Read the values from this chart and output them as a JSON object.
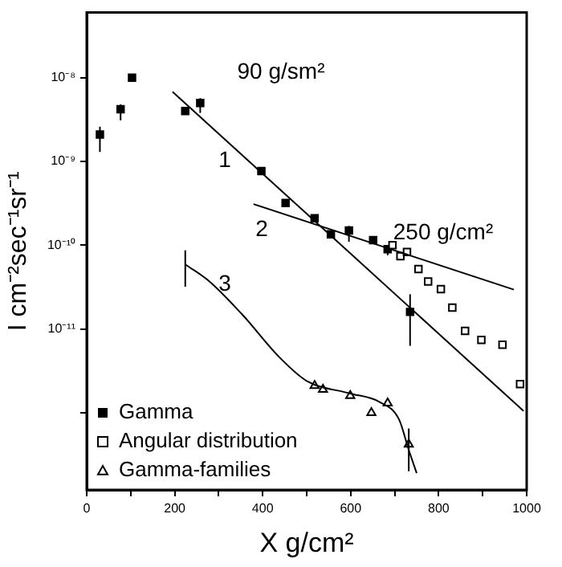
{
  "chart_data": {
    "type": "scatter",
    "xlabel": "X g/cm²",
    "ylabel": "I cm⁻²sec⁻¹sr⁻¹",
    "log": "y",
    "xlim": [
      0,
      1000
    ],
    "ylim": [
      1.2e-13,
      6e-08
    ],
    "xticks": [
      0,
      {
        "value": 100,
        "label": null
      },
      200,
      {
        "value": 300,
        "label": null
      },
      400,
      {
        "value": 500,
        "label": null
      },
      600,
      {
        "value": 700,
        "label": null
      },
      800,
      {
        "value": 900,
        "label": null
      },
      1000
    ],
    "yticks": [
      {
        "value": 1e-08,
        "label": "10⁻⁸"
      },
      {
        "value": 1e-09,
        "label": "10⁻⁹"
      },
      {
        "value": 1e-10,
        "label": "10⁻¹⁰"
      },
      {
        "value": 1e-11,
        "label": "10⁻¹¹"
      },
      {
        "value": 1e-12,
        "label": null
      }
    ],
    "grid": false,
    "legend": "bottom left",
    "series": [
      {
        "name": "Gamma",
        "type": "scatter",
        "marker": "square",
        "color": "#000000",
        "x": [
          30,
          77,
          103,
          224,
          258,
          397,
          452,
          518,
          555,
          596,
          651,
          684,
          735
        ],
        "values": [
          2.1e-09,
          4.2e-09,
          1e-08,
          4e-09,
          5e-09,
          7.7e-10,
          3.2e-10,
          2.1e-10,
          1.35e-10,
          1.5e-10,
          1.15e-10,
          9e-11,
          1.6e-11
        ],
        "errors": [
          [
            1.3e-09,
            2.6e-09
          ],
          [
            3.1e-09,
            4.8e-09
          ],
          null,
          null,
          [
            3.8e-09,
            5.7e-09
          ],
          null,
          null,
          null,
          null,
          [
            1.1e-10,
            1.7e-10
          ],
          null,
          [
            7.6e-11,
            1e-10
          ],
          [
            6.3e-12,
            2.6e-11
          ]
        ]
      },
      {
        "name": "Angular distribution",
        "type": "scatter",
        "marker": "square",
        "color": "#000000",
        "x": [
          695,
          713,
          728,
          754,
          776,
          805,
          831,
          860,
          897,
          945,
          985
        ],
        "values": [
          1e-10,
          7.4e-11,
          8.3e-11,
          5.2e-11,
          3.7e-11,
          3e-11,
          1.8e-11,
          9.5e-12,
          7.4e-12,
          6.5e-12,
          2.2e-12
        ]
      },
      {
        "name": "Gamma-families",
        "type": "scatter",
        "marker": "triangle",
        "color": "#000000",
        "x": [
          518,
          537,
          599,
          647,
          684,
          732
        ],
        "values": [
          2.1e-12,
          1.9e-12,
          1.6e-12,
          1e-12,
          1.3e-12,
          4.2e-13
        ],
        "errors": [
          null,
          null,
          null,
          null,
          null,
          [
            2e-13,
            6.5e-13
          ]
        ]
      },
      {
        "type": "line",
        "marker": "none",
        "color": "#000000",
        "x": [
          195,
          993
        ],
        "values": [
          6.8e-09,
          1.05e-12
        ]
      },
      {
        "type": "line",
        "marker": "none",
        "color": "#000000",
        "x": [
          379,
          971
        ],
        "values": [
          3.1e-10,
          2.95e-11
        ]
      },
      {
        "type": "line",
        "marker": "none",
        "color": "#000000",
        "x": [
          224,
          279,
          353,
          438,
          500,
          599,
          665,
          710,
          732,
          750
        ],
        "values": [
          5.9e-11,
          3.7e-11,
          1.5e-11,
          4.6e-12,
          2.4e-12,
          1.7e-12,
          1.35e-12,
          8.3e-13,
          3.6e-13,
          1.9e-13
        ],
        "errors": [
          [
            3.2e-11,
            8.7e-11
          ],
          null,
          null,
          null,
          null,
          null,
          null,
          null,
          null,
          null
        ]
      }
    ],
    "annotations": [
      "90 g/sm²",
      "1",
      "2",
      "3",
      "250 g/cm²"
    ]
  }
}
